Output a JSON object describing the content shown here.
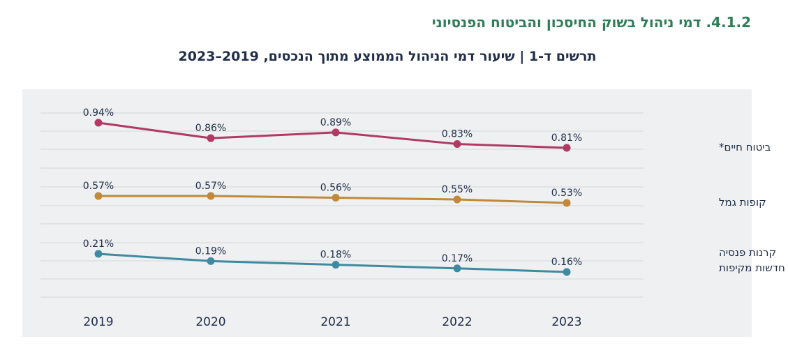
{
  "section_title": "4.1.2. דמי ניהול בשוק החיסכון והביטוח הפנסיוני",
  "chart_title": "תרשים ד-1 | שיעור דמי הניהול הממוצע מתוך הנכסים, 2019–2023",
  "colors": {
    "life_insurance": "#b03a66",
    "provident_funds": "#c08a3a",
    "pension_funds": "#3f8aa1",
    "grid": "#d4d7db",
    "text": "#1f2d48",
    "background": "#eef0f1"
  },
  "chart_data": {
    "type": "line",
    "x": [
      "2019",
      "2020",
      "2021",
      "2022",
      "2023"
    ],
    "grid": true,
    "legend": "right",
    "series": [
      {
        "name": "ביטוח חיים*",
        "name_lines": [
          "ביטוח חיים*"
        ],
        "values": [
          0.94,
          0.86,
          0.89,
          0.83,
          0.81
        ],
        "labels": [
          "0.94%",
          "0.86%",
          "0.89%",
          "0.83%",
          "0.81%"
        ]
      },
      {
        "name": "קופות גמל",
        "name_lines": [
          "קופות גמל"
        ],
        "values": [
          0.57,
          0.57,
          0.56,
          0.55,
          0.53
        ],
        "labels": [
          "0.57%",
          "0.57%",
          "0.56%",
          "0.55%",
          "0.53%"
        ]
      },
      {
        "name": "קרנות פנסיה חדשות מקיפות",
        "name_lines": [
          "קרנות פנסיה",
          "חדשות מקיפות"
        ],
        "values": [
          0.21,
          0.19,
          0.18,
          0.17,
          0.16
        ],
        "labels": [
          "0.21%",
          "0.19%",
          "0.18%",
          "0.17%",
          "0.16%"
        ]
      }
    ]
  }
}
